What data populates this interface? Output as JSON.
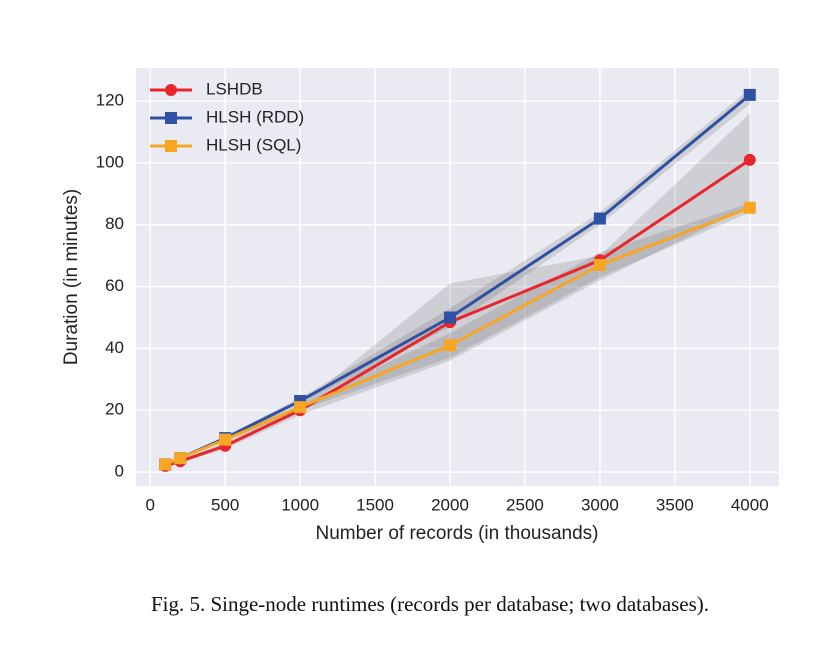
{
  "chart_data": {
    "type": "line",
    "xlabel": "Number of records (in thousands)",
    "ylabel": "Duration (in minutes)",
    "caption": "Fig. 5.  Singe-node runtimes (records per database; two databases).",
    "x": [
      100,
      200,
      500,
      1000,
      2000,
      3000,
      4000
    ],
    "series": [
      {
        "name": "LSHDB",
        "color": "#e8262b",
        "marker": "circle",
        "values": [
          2,
          3.5,
          8.5,
          20,
          48.5,
          68.5,
          101
        ],
        "lower": [
          1.5,
          3,
          7.5,
          18.5,
          36,
          62,
          86
        ],
        "upper": [
          2.5,
          4,
          9.5,
          21.5,
          61,
          70,
          116
        ]
      },
      {
        "name": "HLSH (RDD)",
        "color": "#2f51a3",
        "marker": "square",
        "values": [
          2.5,
          4.5,
          11,
          23,
          50,
          82,
          122
        ],
        "lower": [
          2,
          4,
          10.5,
          22,
          47,
          80,
          119
        ],
        "upper": [
          3,
          5,
          11.5,
          24,
          53,
          84,
          124
        ]
      },
      {
        "name": "HLSH (SQL)",
        "color": "#f6a623",
        "marker": "square",
        "values": [
          2.5,
          4.5,
          10.5,
          21,
          41,
          67,
          85.5
        ],
        "lower": [
          2,
          4,
          10,
          20,
          37,
          63,
          84
        ],
        "upper": [
          3,
          5,
          11,
          22,
          45,
          71,
          87
        ]
      }
    ],
    "xlim": [
      -95,
      4195
    ],
    "ylim": [
      -4.5,
      130.7
    ],
    "xticks": [
      0,
      500,
      1000,
      1500,
      2000,
      2500,
      3000,
      3500,
      4000
    ],
    "yticks": [
      0,
      20,
      40,
      60,
      80,
      100,
      120
    ],
    "grid": true,
    "legend": "upper-left"
  }
}
